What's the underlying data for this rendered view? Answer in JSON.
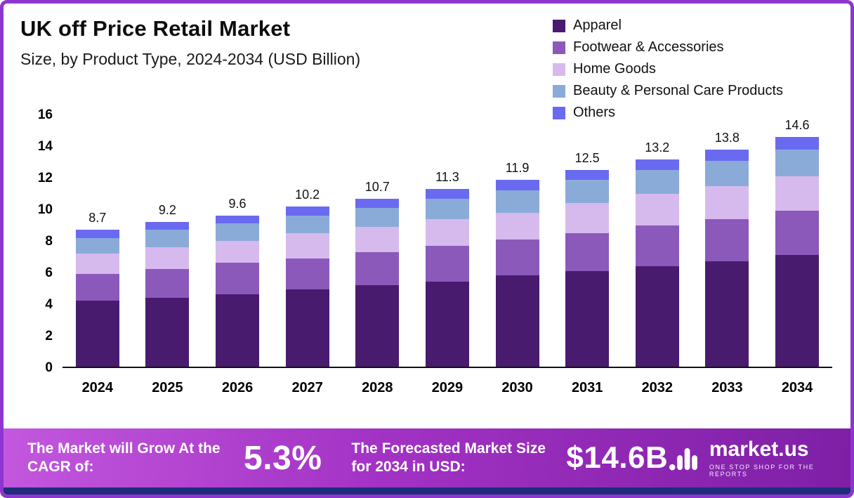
{
  "header": {
    "title": "UK off Price Retail Market",
    "subtitle": "Size, by Product Type, 2024-2034 (USD Billion)"
  },
  "legend": [
    {
      "label": "Apparel",
      "color": "#481b6e"
    },
    {
      "label": "Footwear & Accessories",
      "color": "#8b59ba"
    },
    {
      "label": "Home Goods",
      "color": "#d6baee"
    },
    {
      "label": "Beauty & Personal Care Products",
      "color": "#8aabd8"
    },
    {
      "label": "Others",
      "color": "#6a6af0"
    }
  ],
  "chart_data": {
    "type": "bar",
    "stacked": true,
    "title": "UK off Price Retail Market Size, by Product Type, 2024-2034 (USD Billion)",
    "xlabel": "",
    "ylabel": "",
    "ylim": [
      0,
      16
    ],
    "yticks": [
      0,
      2,
      4,
      6,
      8,
      10,
      12,
      14,
      16
    ],
    "grid": false,
    "legend_position": "top-right",
    "categories": [
      "2024",
      "2025",
      "2026",
      "2027",
      "2028",
      "2029",
      "2030",
      "2031",
      "2032",
      "2033",
      "2034"
    ],
    "series": [
      {
        "name": "Apparel",
        "color": "#481b6e",
        "values": [
          4.2,
          4.4,
          4.6,
          4.9,
          5.2,
          5.4,
          5.8,
          6.1,
          6.4,
          6.7,
          7.1
        ]
      },
      {
        "name": "Footwear & Accessories",
        "color": "#8b59ba",
        "values": [
          1.7,
          1.8,
          2.0,
          2.0,
          2.1,
          2.3,
          2.3,
          2.4,
          2.6,
          2.7,
          2.8
        ]
      },
      {
        "name": "Home Goods",
        "color": "#d6baee",
        "values": [
          1.3,
          1.4,
          1.4,
          1.6,
          1.6,
          1.7,
          1.7,
          1.9,
          2.0,
          2.1,
          2.2
        ]
      },
      {
        "name": "Beauty & Personal Care Products",
        "color": "#8aabd8",
        "values": [
          1.0,
          1.1,
          1.1,
          1.1,
          1.2,
          1.3,
          1.4,
          1.5,
          1.5,
          1.6,
          1.7
        ]
      },
      {
        "name": "Others",
        "color": "#6a6af0",
        "values": [
          0.5,
          0.5,
          0.5,
          0.6,
          0.6,
          0.6,
          0.7,
          0.6,
          0.7,
          0.7,
          0.8
        ]
      }
    ],
    "totals": [
      "8.7",
      "9.2",
      "9.6",
      "10.2",
      "10.7",
      "11.3",
      "11.9",
      "12.5",
      "13.2",
      "13.8",
      "14.6"
    ]
  },
  "banner": {
    "cagr_label": "The Market will Grow At the CAGR of:",
    "cagr_value": "5.3%",
    "forecast_label": "The Forecasted Market Size for 2034 in USD:",
    "forecast_value": "$14.6B",
    "brand": {
      "name": "market.us",
      "tagline": "ONE STOP SHOP FOR THE REPORTS"
    }
  },
  "colors": {
    "page_border": "#8f35cf",
    "banner_gradient_start": "#c357de",
    "banner_gradient_end": "#7e1fa6",
    "footer_strip": "#1f2d7a"
  }
}
